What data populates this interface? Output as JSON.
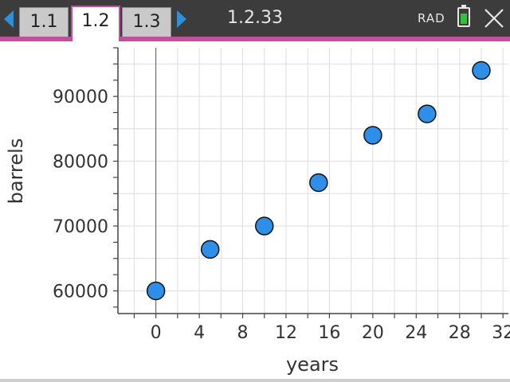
{
  "toolbar": {
    "tabs": [
      {
        "label": "1.1",
        "active": false
      },
      {
        "label": "1.2",
        "active": true
      },
      {
        "label": "1.3",
        "active": false
      }
    ],
    "document_title": "1.2.33",
    "angle_mode": "RAD",
    "battery_level": 0.75,
    "accent_color": "#c0519e",
    "arrow_color": "#2f8fd8",
    "battery_color": "#33c13b",
    "icons": [
      "chevron-left-icon",
      "chevron-right-icon",
      "battery-icon",
      "close-icon"
    ]
  },
  "chart_data": {
    "type": "scatter",
    "xlabel": "years",
    "ylabel": "barrels",
    "xlim": [
      -3.5,
      32.5
    ],
    "ylim": [
      56500,
      97500
    ],
    "x_ticks": [
      0,
      4,
      8,
      12,
      16,
      20,
      24,
      28,
      32
    ],
    "y_ticks": [
      60000,
      70000,
      80000,
      90000
    ],
    "grid": true,
    "point_color": "#2f8fe8",
    "points": [
      {
        "x": 0,
        "y": 60000
      },
      {
        "x": 5,
        "y": 66400
      },
      {
        "x": 10,
        "y": 70000
      },
      {
        "x": 15,
        "y": 76700
      },
      {
        "x": 20,
        "y": 84000
      },
      {
        "x": 25,
        "y": 87300
      },
      {
        "x": 30,
        "y": 94000
      }
    ]
  }
}
